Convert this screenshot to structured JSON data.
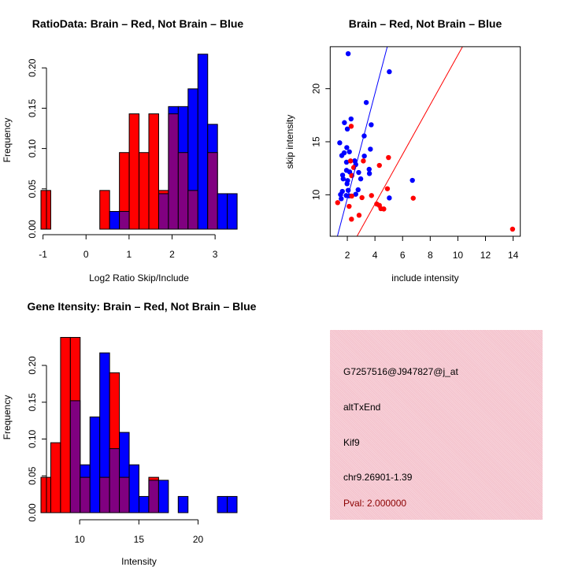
{
  "colors": {
    "brain": "#ff0000",
    "not_brain": "#0000ff",
    "overlap": "#800080",
    "pval": "#8b0000",
    "panel": "#f4c2cc"
  },
  "chart_data": [
    {
      "type": "bar",
      "id": "ratio",
      "title": "RatioData: Brain – Red, Not Brain – Blue",
      "xlabel": "Log2 Ratio Skip/Include",
      "ylabel": "Frequency",
      "bin_start": -1.048,
      "bin_width": 0.228,
      "xlim": [
        -1.048,
        3.51
      ],
      "ylim": [
        0,
        0.22
      ],
      "xticks": [
        -1,
        0,
        1,
        2,
        3
      ],
      "yticks": [
        "0.00",
        "0.05",
        "0.10",
        "0.15",
        "0.20"
      ],
      "series": [
        {
          "name": "Brain",
          "color": "red",
          "values": [
            0.048,
            0,
            0,
            0,
            0,
            0,
            0.048,
            0,
            0.095,
            0.143,
            0.095,
            0.143,
            0.048,
            0.143,
            0.095,
            0.048,
            0,
            0.095,
            0,
            0
          ]
        },
        {
          "name": "Not Brain",
          "color": "blue",
          "values": [
            0,
            0,
            0,
            0,
            0,
            0,
            0,
            0.022,
            0.022,
            0,
            0,
            0,
            0.044,
            0.152,
            0.152,
            0.174,
            0.217,
            0.13,
            0.044,
            0.044
          ]
        }
      ]
    },
    {
      "type": "scatter",
      "id": "scatter",
      "title": "Brain – Red, Not Brain – Blue",
      "xlabel": "include intensity",
      "ylabel": "skip intensity",
      "xlim": [
        0.76,
        14.52
      ],
      "ylim": [
        6.09,
        23.96
      ],
      "xticks": [
        2,
        4,
        6,
        8,
        10,
        12,
        14
      ],
      "yticks": [
        10,
        15,
        20
      ],
      "series": [
        {
          "name": "Not Brain",
          "color": "blue",
          "points": [
            [
              2.06,
              23.3
            ],
            [
              5.04,
              21.6
            ],
            [
              3.37,
              18.7
            ],
            [
              2.27,
              17.15
            ],
            [
              1.79,
              16.8
            ],
            [
              3.73,
              16.6
            ],
            [
              2.0,
              16.2
            ],
            [
              3.22,
              15.55
            ],
            [
              1.45,
              14.9
            ],
            [
              1.96,
              14.45
            ],
            [
              3.67,
              14.3
            ],
            [
              2.15,
              14.05
            ],
            [
              1.77,
              13.95
            ],
            [
              1.6,
              13.7
            ],
            [
              3.23,
              13.65
            ],
            [
              2.53,
              13.2
            ],
            [
              1.94,
              13.07
            ],
            [
              2.61,
              12.85
            ],
            [
              3.58,
              12.4
            ],
            [
              1.94,
              12.3
            ],
            [
              2.17,
              12.15
            ],
            [
              2.82,
              12.1
            ],
            [
              3.6,
              12.0
            ],
            [
              1.66,
              11.85
            ],
            [
              2.32,
              11.83
            ],
            [
              1.7,
              11.5
            ],
            [
              2.97,
              11.5
            ],
            [
              6.71,
              11.36
            ],
            [
              2.02,
              11.34
            ],
            [
              1.98,
              11.04
            ],
            [
              2.06,
              10.42
            ],
            [
              2.78,
              10.47
            ],
            [
              1.64,
              10.32
            ],
            [
              1.51,
              10.02
            ],
            [
              2.61,
              10.05
            ],
            [
              1.92,
              9.93
            ],
            [
              2.13,
              9.9
            ],
            [
              1.56,
              9.63
            ],
            [
              5.04,
              9.7
            ]
          ],
          "fit_line": {
            "slope": 4.95,
            "intercept": -0.25
          }
        },
        {
          "name": "Brain",
          "color": "red",
          "points": [
            [
              2.28,
              16.46
            ],
            [
              2.23,
              13.19
            ],
            [
              3.16,
              13.19
            ],
            [
              4.98,
              13.51
            ],
            [
              4.32,
              12.77
            ],
            [
              2.46,
              12.57
            ],
            [
              2.32,
              11.8
            ],
            [
              4.9,
              10.57
            ],
            [
              3.75,
              9.93
            ],
            [
              2.32,
              9.88
            ],
            [
              3.06,
              9.73
            ],
            [
              6.77,
              9.68
            ],
            [
              1.3,
              9.26
            ],
            [
              4.13,
              9.13
            ],
            [
              4.32,
              9.0
            ],
            [
              4.43,
              8.69
            ],
            [
              4.64,
              8.66
            ],
            [
              2.13,
              8.91
            ],
            [
              2.85,
              8.07
            ],
            [
              2.3,
              7.7
            ],
            [
              13.96,
              6.76
            ]
          ],
          "fit_line": {
            "slope": 2.34,
            "intercept": -0.23
          }
        }
      ]
    },
    {
      "type": "bar",
      "id": "gene",
      "title": "Gene Itensity: Brain – Red, Not Brain – Blue",
      "xlabel": "Intensity",
      "ylabel": "Frequency",
      "bin_start": 6.73,
      "bin_width": 0.828,
      "xlim": [
        6.73,
        23.29
      ],
      "ylim": [
        0,
        0.24
      ],
      "xticks": [
        10,
        15,
        20
      ],
      "yticks": [
        "0.00",
        "0.05",
        "0.10",
        "0.15",
        "0.20"
      ],
      "series": [
        {
          "name": "Brain",
          "color": "red",
          "values": [
            0.048,
            0.095,
            0.238,
            0.238,
            0.048,
            0,
            0.048,
            0.19,
            0.048,
            0,
            0,
            0.048,
            0,
            0,
            0,
            0,
            0,
            0,
            0,
            0
          ]
        },
        {
          "name": "Not Brain",
          "color": "blue",
          "values": [
            0,
            0,
            0,
            0.152,
            0.065,
            0.13,
            0.217,
            0.087,
            0.109,
            0.065,
            0.022,
            0.044,
            0.044,
            0,
            0.022,
            0,
            0,
            0,
            0.022,
            0.022
          ]
        }
      ]
    }
  ],
  "info_panel": {
    "probe_id": "G7257516@J947827@j_at",
    "event_type": "altTxEnd",
    "gene": "Kif9",
    "location": "chr9.26901-1.39",
    "pval": "Pval: 2.000000"
  }
}
